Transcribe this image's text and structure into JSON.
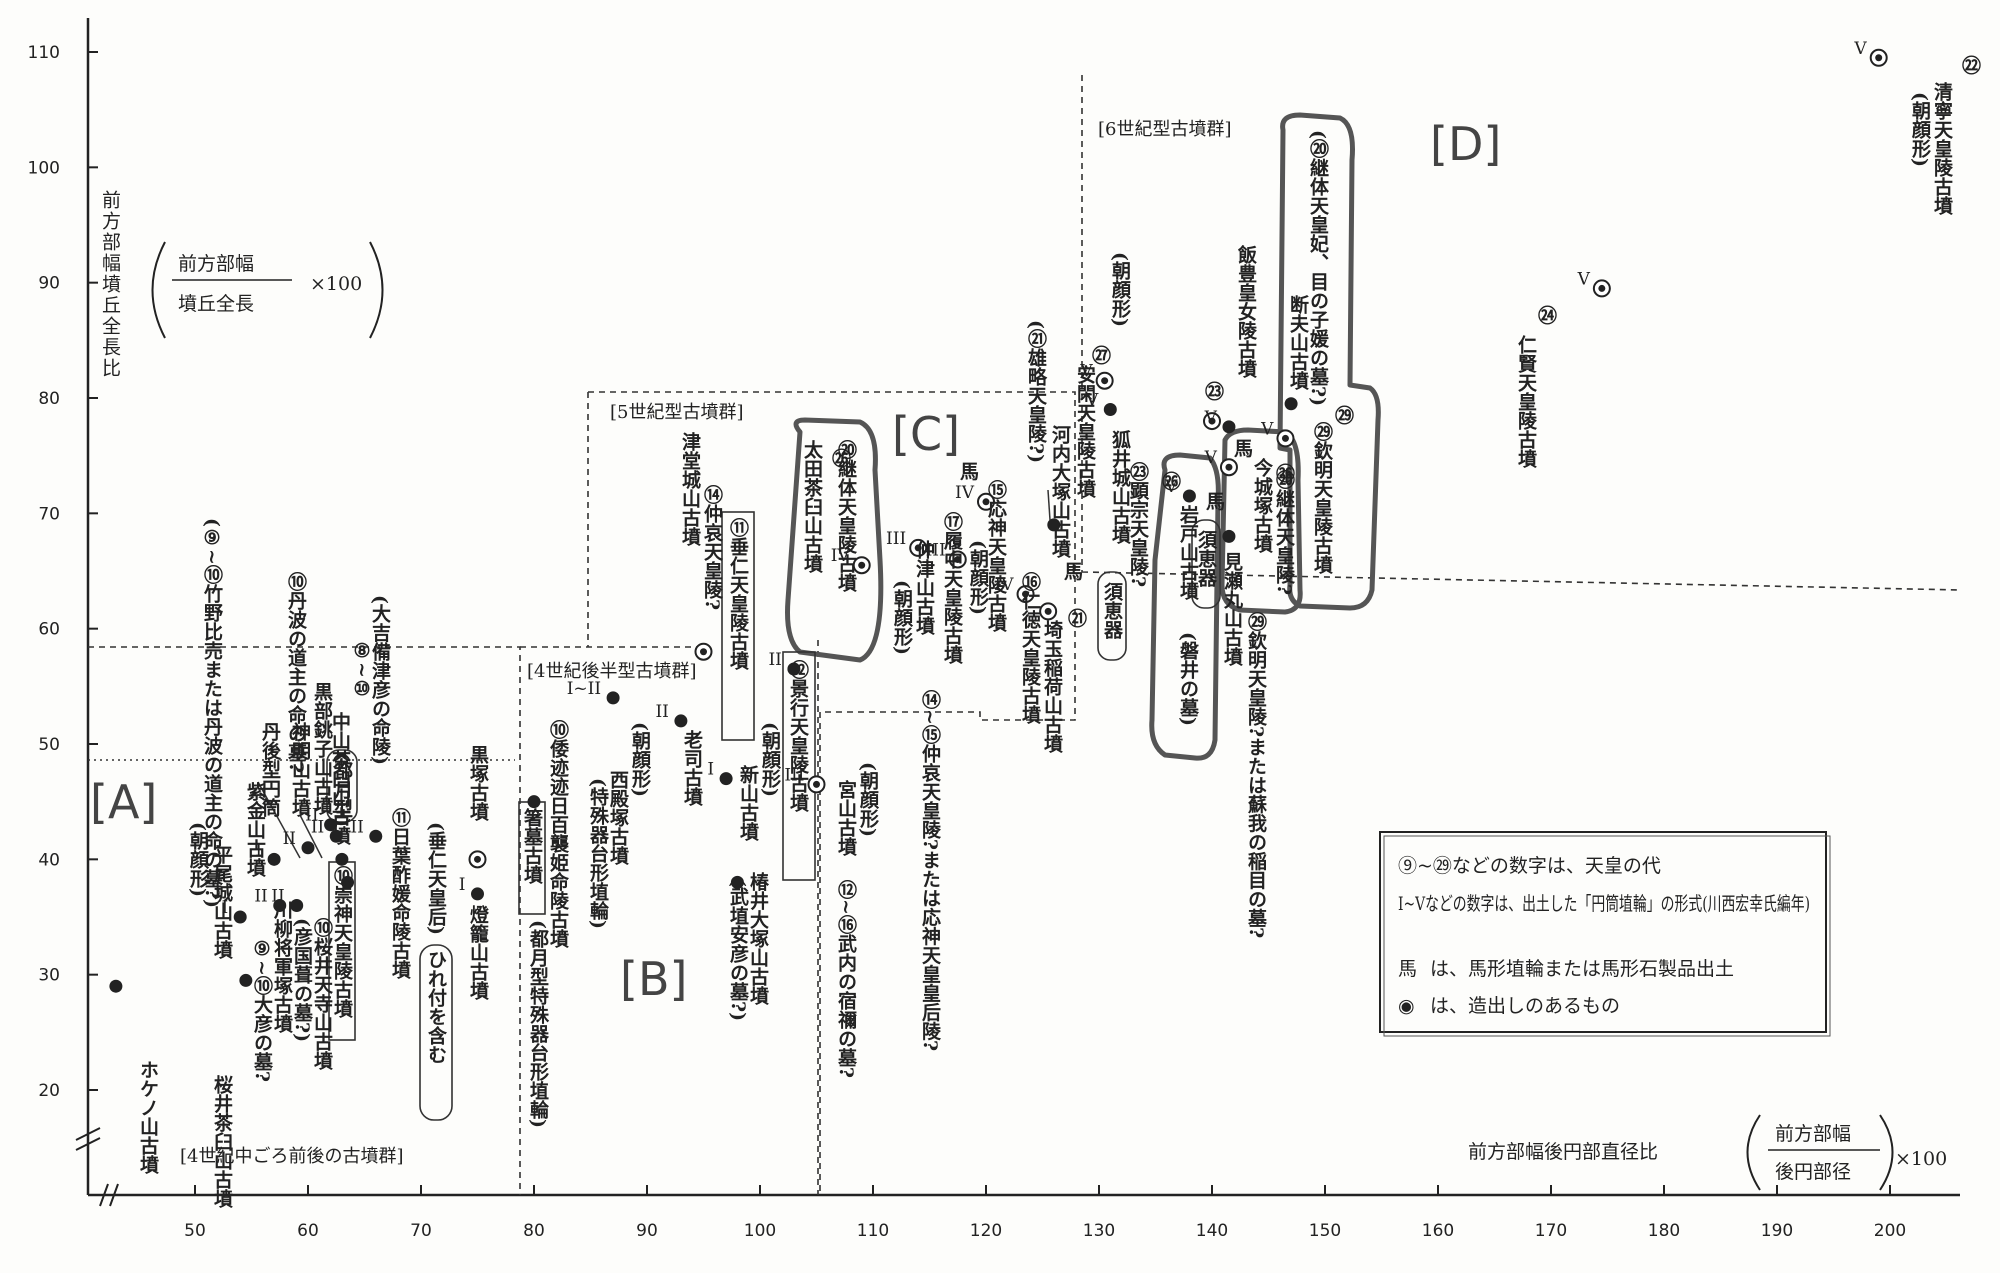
{
  "chart_data": {
    "type": "scatter",
    "xlabel": "前方部幅後円部直径比",
    "xlabel_fraction": {
      "numerator": "前方部幅",
      "denominator": "後円部径",
      "multiplier": "×100"
    },
    "ylabel": "前方部幅墳丘全長比",
    "ylabel_fraction": {
      "numerator": "前方部幅",
      "denominator": "墳丘全長",
      "multiplier": "×100"
    },
    "xlim": [
      40,
      206
    ],
    "ylim": [
      12,
      113
    ],
    "x_ticks": [
      "50",
      "60",
      "70",
      "80",
      "90",
      "100",
      "110",
      "120",
      "130",
      "140",
      "150",
      "160",
      "170",
      "180",
      "190",
      "200"
    ],
    "y_ticks": [
      "20",
      "30",
      "40",
      "50",
      "60",
      "70",
      "80",
      "90",
      "100",
      "110"
    ],
    "regions": [
      {
        "label": "[A]",
        "x": 44,
        "y": 42
      },
      {
        "label": "[B]",
        "x": 81,
        "y": 29
      },
      {
        "label": "[C]",
        "x": 113,
        "y": 74
      },
      {
        "label": "[D]",
        "x": 149,
        "y": 100
      }
    ],
    "group_labels": [
      {
        "text": "[4世紀中ごろ前後の古墳群]",
        "x": 48,
        "y": 17
      },
      {
        "text": "[4世紀後半型古墳群]",
        "x": 79,
        "y": 56
      },
      {
        "text": "[5世紀型古墳群]",
        "x": 87,
        "y": 75
      },
      {
        "text": "[6世紀型古墳群]",
        "x": 129,
        "y": 103
      }
    ],
    "points": [
      {
        "x": 43,
        "y": 29,
        "marker": "dot",
        "roman": "",
        "label": "ホケノ山古墳"
      },
      {
        "x": 54,
        "y": 35,
        "marker": "dot",
        "roman": "I",
        "label": "平尾城山古墳(朝顔形)"
      },
      {
        "x": 54.5,
        "y": 29.5,
        "marker": "dot",
        "roman": "",
        "label": "桜井茶臼山古墳"
      },
      {
        "x": 57,
        "y": 40,
        "marker": "dot",
        "roman": "I",
        "label": "紫金山古墳"
      },
      {
        "x": 57.5,
        "y": 36,
        "marker": "dot",
        "roman": "II",
        "label": "川柳将軍塚古墳"
      },
      {
        "x": 59,
        "y": 36,
        "marker": "dot",
        "roman": "II",
        "label": "⑨~⑩大彦の墓?"
      },
      {
        "x": 60,
        "y": 41,
        "marker": "dot",
        "roman": "II",
        "label": "神明山古墳"
      },
      {
        "x": 62,
        "y": 43,
        "marker": "dot",
        "roman": "II",
        "label": "黒部銚子山古墳"
      },
      {
        "x": 62.5,
        "y": 42,
        "marker": "dot",
        "roman": "II",
        "label": "中山茶臼山古墳"
      },
      {
        "x": 63,
        "y": 40,
        "marker": "dot",
        "roman": "",
        "label": "⑩崇神天皇陵古墳"
      },
      {
        "x": 63.5,
        "y": 38,
        "marker": "dot",
        "roman": "",
        "label": "⑩桜井天寺山古墳"
      },
      {
        "x": 66,
        "y": 42,
        "marker": "dot",
        "roman": "II",
        "label": "日葉酢媛命陵古墳"
      },
      {
        "x": 75,
        "y": 40,
        "marker": "ring",
        "roman": "",
        "label": "黒塚古墳"
      },
      {
        "x": 75,
        "y": 37,
        "marker": "dot",
        "roman": "I",
        "label": "燈籠山古墳"
      },
      {
        "x": 80,
        "y": 45,
        "marker": "dot",
        "roman": "",
        "label": "箸墓古墳"
      },
      {
        "x": 87,
        "y": 54,
        "marker": "dot",
        "roman": "I~II",
        "label": "西殿塚古墳"
      },
      {
        "x": 95,
        "y": 58,
        "marker": "ring",
        "roman": "",
        "label": "⑭仲哀天皇陵?"
      },
      {
        "x": 93,
        "y": 52,
        "marker": "dot",
        "roman": "II",
        "label": "老司古墳"
      },
      {
        "x": 97,
        "y": 47,
        "marker": "dot",
        "roman": "I",
        "label": "新山古墳"
      },
      {
        "x": 98,
        "y": 38,
        "marker": "dot",
        "roman": "",
        "label": "椿井大塚山古墳"
      },
      {
        "x": 103,
        "y": 56.5,
        "marker": "dot",
        "roman": "II",
        "label": "⑫景行天皇陵古墳"
      },
      {
        "x": 105,
        "y": 46.5,
        "marker": "ring",
        "roman": "III",
        "label": "宮山古墳"
      },
      {
        "x": 109,
        "y": 65.5,
        "marker": "ring",
        "roman": "IV",
        "label": "⑳継体天皇陵古墳"
      },
      {
        "x": 114,
        "y": 67,
        "marker": "ring",
        "roman": "III",
        "label": "仲津山古墳"
      },
      {
        "x": 117.5,
        "y": 66,
        "marker": "ring",
        "roman": "III",
        "label": "履中天皇陵古墳"
      },
      {
        "x": 120,
        "y": 71,
        "marker": "ring",
        "roman": "IV",
        "label": "応神天皇陵古墳"
      },
      {
        "x": 123.5,
        "y": 63,
        "marker": "ring",
        "roman": "IV",
        "label": "⑯仁徳天皇陵古墳"
      },
      {
        "x": 125.5,
        "y": 61.5,
        "marker": "ring",
        "roman": "",
        "label": "埼玉稲荷山古墳"
      },
      {
        "x": 126,
        "y": 69,
        "marker": "dot",
        "roman": "",
        "label": "河内大塚山古墳"
      },
      {
        "x": 130.5,
        "y": 81.5,
        "marker": "ring",
        "roman": "V",
        "label": "安閑天皇陵古墳"
      },
      {
        "x": 131,
        "y": 79,
        "marker": "dot",
        "roman": "V",
        "label": "狐井城山古墳"
      },
      {
        "x": 138,
        "y": 71.5,
        "marker": "dot",
        "roman": "V",
        "label": "岩戸山古墳"
      },
      {
        "x": 140,
        "y": 78,
        "marker": "ring",
        "roman": "",
        "label": "飯豊皇女陵古墳"
      },
      {
        "x": 141.5,
        "y": 77.5,
        "marker": "dot",
        "roman": "V",
        "label": "⑳今城塚古墳"
      },
      {
        "x": 141.5,
        "y": 74,
        "marker": "ring",
        "roman": "V",
        "label": "今城塚古墳"
      },
      {
        "x": 141.5,
        "y": 68,
        "marker": "dot",
        "roman": "",
        "label": "見瀬丸山古墳"
      },
      {
        "x": 146.5,
        "y": 76.5,
        "marker": "ring",
        "roman": "V",
        "label": "断夫山古墳"
      },
      {
        "x": 147,
        "y": 79.5,
        "marker": "dot",
        "roman": "",
        "label": "欽明天皇陵古墳"
      },
      {
        "x": 174.5,
        "y": 89.5,
        "marker": "ring",
        "roman": "V",
        "label": "仁賢天皇陵古墳"
      },
      {
        "x": 199,
        "y": 109.5,
        "marker": "ring",
        "roman": "V",
        "label": "清寧天皇陵古墳(朝顔形)"
      }
    ],
    "legend": [
      {
        "symbol": "",
        "text": "⑨~㉙などの数字は、天皇の代"
      },
      {
        "symbol": "",
        "text": "I~Vなどの数字は、出土した「円筒埴輪」の形式(川西宏幸氏編年)"
      },
      {
        "symbol": "馬",
        "text": "は、馬形埴輪または馬形石製品出土"
      },
      {
        "symbol": "◉",
        "text": "は、造出しのあるもの"
      }
    ],
    "legend_placement": "bottom-right",
    "grid": false
  },
  "labels": {
    "l_hokenoyama": "ホケノ山古墳",
    "l_sakurai": "桜井茶臼山古墳",
    "l_hirao": "平尾城山古墳",
    "l_asagao1": "(朝顔形)",
    "l_shikin": "紫金山古墳",
    "l_tango": "丹後型円筒",
    "l_shinmei": "神明山古墳",
    "l_kurobe": "黒部銚子山古墳",
    "l_tanba1": "⑩丹波の道主の命の墓?",
    "l_tanba2": "(⑨~⑩竹野比売または丹波の道主の命の墓?)",
    "l_kibitsu": "(大吉備津彦の命陵)",
    "l_nakayama": "中山茶臼山古墳",
    "l_kokunu": "⑧~⑩",
    "l_tsukigata": "(都月型)",
    "l_sujin": "⑩崇神天皇陵古墳",
    "l_kawayanagi": "川柳将軍塚古墳",
    "l_hikokuni": "(彦国葺の墓?)",
    "l_ohiko": "⑨~⑩大彦の墓?",
    "l_tendera": "⑩桜井天寺山古墳",
    "l_hibasu": "⑪日葉酢媛命陵古墳",
    "l_suinin_kogo": "(垂仁天皇后)",
    "l_hiretsuki": "ひれ付を含む",
    "l_kurozuka": "黒塚古墳",
    "l_torou": "燈籠山古墳",
    "l_hashihaka": "箸墓古墳",
    "l_yamato": "⑩倭迹迹日百襲姫命陵古墳",
    "l_tsukigata2": "(都月型特殊器台形埴輪)",
    "l_nishitono": "西殿塚古墳",
    "l_asagao2": "(朝顔形)",
    "l_tokushu": "(特殊器台形埴輪)",
    "l_roji": "老司古墳",
    "l_tsudo": "津堂城山古墳",
    "l_chuai": "⑭仲哀天皇陵?",
    "l_suinin": "⑪垂仁天皇陵古墳",
    "l_shinyama": "新山古墳",
    "l_asagao3": "(朝顔形)",
    "l_tsubai": "椿井大塚山古墳",
    "l_takeha": "(武埴安彦の墓?)",
    "l_keiko": "⑫景行天皇陵古墳",
    "l_ota": "太田茶臼山古墳",
    "l_keitai1": "⑳継体天皇陵古墳",
    "l_miyayama": "宮山古墳",
    "l_asagao4": "(朝顔形)",
    "l_takenouchi": "⑫~⑯武内の宿禰の墓?",
    "l_nakatsu": "仲津山古墳",
    "l_asagao5": "(朝顔形)",
    "l_chuai2": "⑭~⑮仲哀天皇陵?または応神天皇皇后陵?",
    "l_richu": "⑰履中天皇陵古墳",
    "l_asagao6": "(朝顔形)",
    "l_ojin": "⑮応神天皇陵古墳",
    "l_nintoku": "⑯仁徳天皇陵古墳",
    "l_sakitama": "埼玉稲荷山古墳",
    "l_kawachi": "河内大塚山古墳",
    "l_yuryaku": "(㉑雄略天皇陵?)",
    "l_ankan": "安閑天皇陵古墳",
    "l_asagao7": "(朝顔形)",
    "l_kitsunei": "狐井城山古墳",
    "l_kenzo": "㉓顕宗天皇陵?",
    "l_sueki1": "須恵器",
    "l_iwato": "岩戸山古墳",
    "l_iwai": "(磐井の墓)",
    "l_sueki2": "須恵器",
    "l_misemaruyama": "見瀬丸山古墳",
    "l_kinmei2": "㉙欽明天皇陵?または蘇我の稲目の墓?",
    "l_iitoyo": "飯豊皇女陵古墳",
    "l_imashiro": "今城塚古墳",
    "l_keitai2": "⑳継体天皇陵?",
    "l_danpu": "断夫山古墳",
    "l_keitai_hi": "(⑳継体天皇妃、目の子媛の墓?)",
    "l_kinmei": "㉙欽明天皇陵古墳",
    "l_ninken": "仁賢天皇陵古墳",
    "l_seinei": "清寧天皇陵古墳",
    "l_asagao8": "(朝顔形)",
    "l_uma1": "馬",
    "l_uma2": "馬",
    "l_uma3": "馬",
    "l_uma4": "馬",
    "n21a": "㉑",
    "n26": "㉖",
    "n27": "㉗",
    "n23": "㉓",
    "n24": "㉔",
    "n22": "㉒",
    "n29a": "㉙",
    "n26b": "㉖",
    "n26c": "㉖"
  }
}
